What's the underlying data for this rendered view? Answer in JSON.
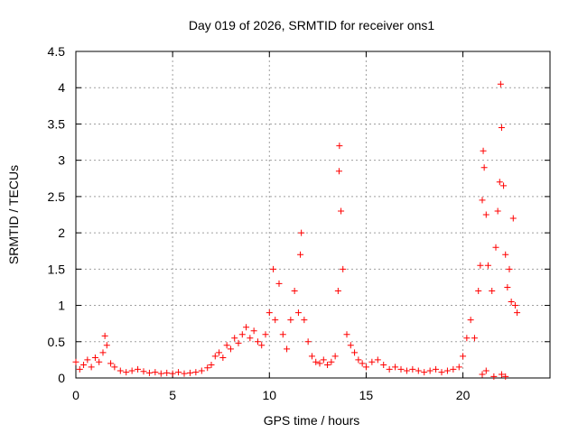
{
  "chart_data": {
    "type": "scatter",
    "title": "Day 019 of 2026, SRMTID for receiver ons1",
    "xlabel": "GPS time / hours",
    "ylabel": "SRMTID / TECUs",
    "xlim": [
      0,
      24.5
    ],
    "ylim": [
      0,
      4.5
    ],
    "xticks": [
      0,
      5,
      10,
      15,
      20
    ],
    "xtick_labels": [
      "0",
      "5",
      "10",
      "15",
      "20"
    ],
    "yticks": [
      0,
      0.5,
      1,
      1.5,
      2,
      2.5,
      3,
      3.5,
      4,
      4.5
    ],
    "ytick_labels": [
      "0",
      "0.5",
      "1",
      "1.5",
      "2",
      "2.5",
      "3",
      "3.5",
      "4",
      "4.5"
    ],
    "grid": true,
    "marker": "+",
    "color": "#ff0000",
    "series": [
      {
        "name": "SRMTID",
        "points": [
          [
            0.0,
            0.22
          ],
          [
            0.2,
            0.12
          ],
          [
            0.4,
            0.18
          ],
          [
            0.6,
            0.25
          ],
          [
            0.8,
            0.15
          ],
          [
            1.0,
            0.28
          ],
          [
            1.2,
            0.22
          ],
          [
            1.4,
            0.35
          ],
          [
            1.5,
            0.58
          ],
          [
            1.6,
            0.45
          ],
          [
            1.8,
            0.2
          ],
          [
            2.0,
            0.15
          ],
          [
            2.3,
            0.1
          ],
          [
            2.6,
            0.08
          ],
          [
            2.9,
            0.1
          ],
          [
            3.2,
            0.12
          ],
          [
            3.5,
            0.09
          ],
          [
            3.8,
            0.07
          ],
          [
            4.1,
            0.08
          ],
          [
            4.4,
            0.06
          ],
          [
            4.7,
            0.07
          ],
          [
            5.0,
            0.06
          ],
          [
            5.3,
            0.08
          ],
          [
            5.6,
            0.06
          ],
          [
            5.9,
            0.07
          ],
          [
            6.2,
            0.08
          ],
          [
            6.5,
            0.1
          ],
          [
            6.8,
            0.14
          ],
          [
            7.0,
            0.18
          ],
          [
            7.2,
            0.3
          ],
          [
            7.4,
            0.35
          ],
          [
            7.6,
            0.28
          ],
          [
            7.8,
            0.45
          ],
          [
            8.0,
            0.4
          ],
          [
            8.2,
            0.55
          ],
          [
            8.4,
            0.48
          ],
          [
            8.6,
            0.6
          ],
          [
            8.8,
            0.7
          ],
          [
            9.0,
            0.55
          ],
          [
            9.2,
            0.65
          ],
          [
            9.4,
            0.5
          ],
          [
            9.6,
            0.45
          ],
          [
            9.8,
            0.6
          ],
          [
            10.0,
            0.9
          ],
          [
            10.2,
            1.5
          ],
          [
            10.3,
            0.8
          ],
          [
            10.5,
            1.3
          ],
          [
            10.7,
            0.6
          ],
          [
            10.9,
            0.4
          ],
          [
            11.1,
            0.8
          ],
          [
            11.3,
            1.2
          ],
          [
            11.5,
            0.9
          ],
          [
            11.6,
            1.7
          ],
          [
            11.65,
            2.0
          ],
          [
            11.8,
            0.8
          ],
          [
            12.0,
            0.5
          ],
          [
            12.2,
            0.3
          ],
          [
            12.4,
            0.22
          ],
          [
            12.6,
            0.2
          ],
          [
            12.8,
            0.25
          ],
          [
            13.0,
            0.18
          ],
          [
            13.2,
            0.22
          ],
          [
            13.4,
            0.3
          ],
          [
            13.55,
            1.2
          ],
          [
            13.6,
            2.85
          ],
          [
            13.62,
            3.2
          ],
          [
            13.7,
            2.3
          ],
          [
            13.8,
            1.5
          ],
          [
            14.0,
            0.6
          ],
          [
            14.2,
            0.45
          ],
          [
            14.4,
            0.35
          ],
          [
            14.6,
            0.25
          ],
          [
            14.8,
            0.2
          ],
          [
            15.0,
            0.15
          ],
          [
            15.3,
            0.22
          ],
          [
            15.6,
            0.25
          ],
          [
            15.9,
            0.18
          ],
          [
            16.2,
            0.12
          ],
          [
            16.5,
            0.15
          ],
          [
            16.8,
            0.12
          ],
          [
            17.1,
            0.1
          ],
          [
            17.4,
            0.12
          ],
          [
            17.7,
            0.1
          ],
          [
            18.0,
            0.08
          ],
          [
            18.3,
            0.1
          ],
          [
            18.6,
            0.12
          ],
          [
            18.9,
            0.08
          ],
          [
            19.2,
            0.1
          ],
          [
            19.5,
            0.12
          ],
          [
            19.8,
            0.15
          ],
          [
            20.0,
            0.3
          ],
          [
            20.2,
            0.55
          ],
          [
            20.4,
            0.8
          ],
          [
            20.6,
            0.55
          ],
          [
            20.8,
            1.2
          ],
          [
            20.9,
            1.55
          ],
          [
            21.0,
            2.45
          ],
          [
            21.05,
            3.13
          ],
          [
            21.1,
            2.9
          ],
          [
            21.2,
            2.25
          ],
          [
            21.3,
            1.55
          ],
          [
            21.5,
            1.2
          ],
          [
            21.7,
            1.8
          ],
          [
            21.8,
            2.3
          ],
          [
            21.9,
            2.7
          ],
          [
            21.95,
            4.05
          ],
          [
            22.0,
            3.45
          ],
          [
            22.1,
            2.65
          ],
          [
            22.2,
            1.7
          ],
          [
            22.3,
            1.25
          ],
          [
            22.4,
            1.5
          ],
          [
            22.5,
            1.05
          ],
          [
            22.6,
            2.2
          ],
          [
            22.7,
            1.0
          ],
          [
            22.8,
            0.9
          ],
          [
            21.0,
            0.05
          ],
          [
            21.2,
            0.1
          ],
          [
            21.6,
            0.02
          ],
          [
            22.0,
            0.05
          ],
          [
            22.2,
            0.02
          ]
        ]
      }
    ]
  }
}
